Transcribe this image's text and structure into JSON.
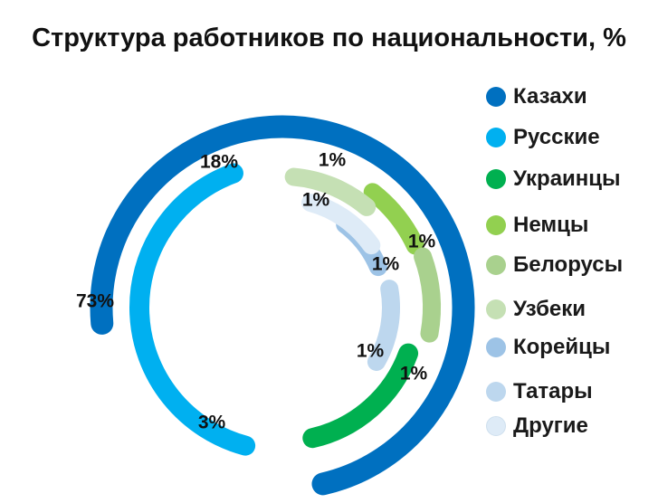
{
  "chart_data": {
    "type": "radial-bar",
    "title": "Структура работников по национальности, %",
    "unit": "%",
    "series": [
      {
        "name": "Казахи",
        "value": 73,
        "label": "73%",
        "color": "#0070C0"
      },
      {
        "name": "Русские",
        "value": 18,
        "label": "18%",
        "color": "#00B0F0"
      },
      {
        "name": "Украинцы",
        "value": 3,
        "label": "3%",
        "color": "#00B050"
      },
      {
        "name": "Немцы",
        "value": 1,
        "label": "1%",
        "color": "#92D050"
      },
      {
        "name": "Белорусы",
        "value": 1,
        "label": "1%",
        "color": "#A9D18E"
      },
      {
        "name": "Узбеки",
        "value": 1,
        "label": "1%",
        "color": "#C5E0B4"
      },
      {
        "name": "Корейцы",
        "value": 1,
        "label": "1%",
        "color": "#9DC3E6"
      },
      {
        "name": "Татары",
        "value": 1,
        "label": "1%",
        "color": "#BDD7EE"
      },
      {
        "name": "Другие",
        "value": 1,
        "label": "1%",
        "color": "#DEEBF7"
      }
    ],
    "legend_position": "right"
  }
}
